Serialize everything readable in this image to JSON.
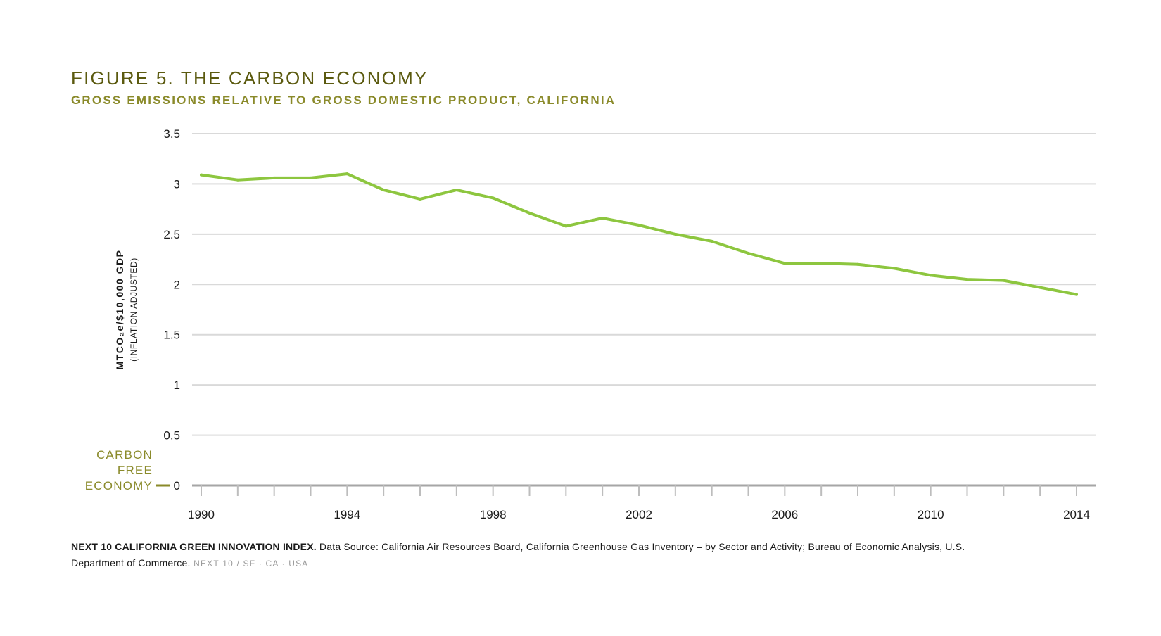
{
  "header": {
    "title": "FIGURE 5. THE CARBON ECONOMY",
    "subtitle": "GROSS EMISSIONS RELATIVE TO GROSS DOMESTIC PRODUCT, CALIFORNIA"
  },
  "colors": {
    "title": "#5b5a0f",
    "subtitle": "#8a8a2a",
    "line": "#8dc63f",
    "grid": "#d9d9d9",
    "annotation": "#8a8a2a"
  },
  "chart_data": {
    "type": "line",
    "title": "FIGURE 5. THE CARBON ECONOMY",
    "subtitle": "GROSS EMISSIONS RELATIVE TO GROSS DOMESTIC PRODUCT, CALIFORNIA",
    "ylabel": "MTCO₂e/$10,000 GDP",
    "ylabel_sub": "(INFLATION ADJUSTED)",
    "xlabel": "",
    "ylim": [
      0,
      3.5
    ],
    "yticks": [
      0,
      0.5,
      1,
      1.5,
      2,
      2.5,
      3,
      3.5
    ],
    "ytick_labels": [
      "0",
      "0.5",
      "1",
      "1.5",
      "2",
      "2.5",
      "3",
      "3.5"
    ],
    "xlim": [
      1990,
      2014
    ],
    "xtick_labels": [
      "1990",
      "1994",
      "1998",
      "2002",
      "2006",
      "2010",
      "2014"
    ],
    "grid": true,
    "legend": "none",
    "x": [
      1990,
      1991,
      1992,
      1993,
      1994,
      1995,
      1996,
      1997,
      1998,
      1999,
      2000,
      2001,
      2002,
      2003,
      2004,
      2005,
      2006,
      2007,
      2008,
      2009,
      2010,
      2011,
      2012,
      2013,
      2014
    ],
    "values": [
      3.09,
      3.04,
      3.06,
      3.06,
      3.1,
      2.94,
      2.85,
      2.94,
      2.86,
      2.71,
      2.58,
      2.66,
      2.59,
      2.5,
      2.43,
      2.31,
      2.21,
      2.21,
      2.2,
      2.16,
      2.09,
      2.05,
      2.04,
      1.97,
      1.9
    ],
    "annotation": {
      "lines": [
        "CARBON",
        "FREE",
        "ECONOMY"
      ],
      "value": 0
    }
  },
  "footer": {
    "source_bold": "NEXT 10 CALIFORNIA GREEN INNOVATION INDEX.",
    "source_text": " Data Source: California Air Resources Board, California Greenhouse Gas Inventory – by Sector and Activity; Bureau of Economic Analysis, U.S. Department of Commerce.",
    "credit": " NEXT 10  /  SF · CA · USA"
  }
}
